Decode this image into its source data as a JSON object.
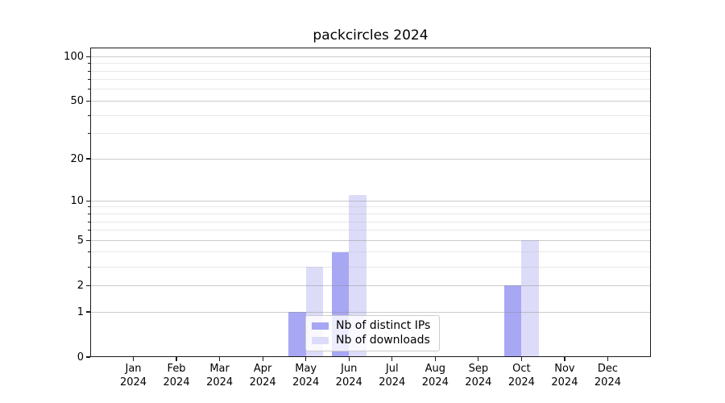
{
  "figure": {
    "title": "packcircles 2024"
  },
  "legend": {
    "items": [
      {
        "label": "Nb of distinct IPs",
        "series": "ips"
      },
      {
        "label": "Nb of downloads",
        "series": "downloads"
      }
    ]
  },
  "colors": {
    "ips_bar": "#a7a7f4",
    "downloads_bar": "#dcdcf9",
    "grid_major": "rgba(140,140,140,0.45)",
    "grid_minor": "rgba(180,180,180,0.30)",
    "spine": "#1a1a1a",
    "text": "#000000",
    "legend_bg": "rgba(255,255,255,0.8)",
    "legend_border": "#cccccc"
  },
  "chart_data": {
    "type": "bar",
    "title": "packcircles 2024",
    "categories": [
      "Jan 2024",
      "Feb 2024",
      "Mar 2024",
      "Apr 2024",
      "May 2024",
      "Jun 2024",
      "Jul 2024",
      "Aug 2024",
      "Sep 2024",
      "Oct 2024",
      "Nov 2024",
      "Dec 2024"
    ],
    "x_tick_month": [
      "Jan",
      "Feb",
      "Mar",
      "Apr",
      "May",
      "Jun",
      "Jul",
      "Aug",
      "Sep",
      "Oct",
      "Nov",
      "Dec"
    ],
    "x_tick_year": "2024",
    "series": [
      {
        "name": "Nb of distinct IPs",
        "color": "#a7a7f4",
        "values": [
          0,
          0,
          0,
          0,
          1,
          4,
          0,
          0,
          0,
          2,
          0,
          0
        ]
      },
      {
        "name": "Nb of downloads",
        "color": "#dcdcf9",
        "values": [
          0,
          0,
          0,
          0,
          3,
          11,
          0,
          0,
          0,
          5,
          0,
          0
        ]
      }
    ],
    "yscale": "log1p",
    "ylim": [
      0,
      115
    ],
    "y_major_ticks": [
      0,
      1,
      2,
      5,
      10,
      20,
      50,
      100
    ],
    "y_minor_ticks": [
      3,
      4,
      6,
      7,
      8,
      9,
      30,
      40,
      60,
      70,
      80,
      90
    ],
    "grid": true,
    "legend_position": "lower-center-inside",
    "xlabel": "",
    "ylabel": ""
  }
}
